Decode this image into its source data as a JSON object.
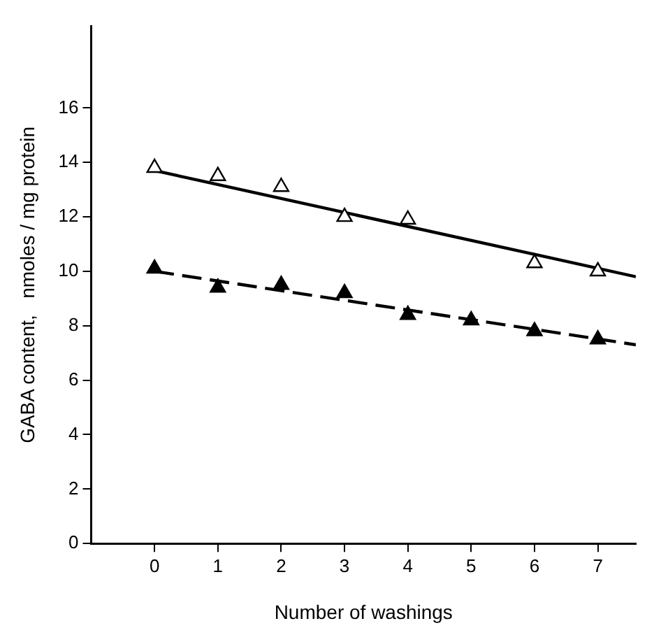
{
  "chart_data": {
    "type": "scatter",
    "xlabel": "Number of washings",
    "ylabel": "GABA content,   nmoles / mg protein",
    "xlim": [
      -1,
      7.6
    ],
    "ylim": [
      0,
      19
    ],
    "xticks": [
      0,
      1,
      2,
      3,
      4,
      5,
      6,
      7
    ],
    "yticks": [
      0,
      2,
      4,
      6,
      8,
      10,
      12,
      14,
      16
    ],
    "grid": false,
    "legend": false,
    "marker": "triangle",
    "series": [
      {
        "type": "scatter",
        "color": "#000000",
        "x": [
          0,
          1,
          2,
          3,
          4,
          6,
          7
        ],
        "values": [
          13.8,
          13.5,
          13.1,
          12.0,
          11.9,
          10.3,
          10.0
        ]
      },
      {
        "type": "scatter",
        "color": "#000000",
        "x": [
          0,
          1,
          2,
          3,
          4,
          5,
          6,
          7
        ],
        "values": [
          10.1,
          9.4,
          9.5,
          9.2,
          8.4,
          8.2,
          7.8,
          7.5
        ]
      },
      {
        "type": "line",
        "color": "#000000",
        "marker": "none",
        "line_style": "solid",
        "x": [
          0,
          7.6
        ],
        "values": [
          13.7,
          9.8
        ]
      },
      {
        "type": "line",
        "color": "#000000",
        "marker": "none",
        "line_style": "dashed",
        "x": [
          0,
          7.6
        ],
        "values": [
          10.0,
          7.3
        ]
      }
    ]
  }
}
